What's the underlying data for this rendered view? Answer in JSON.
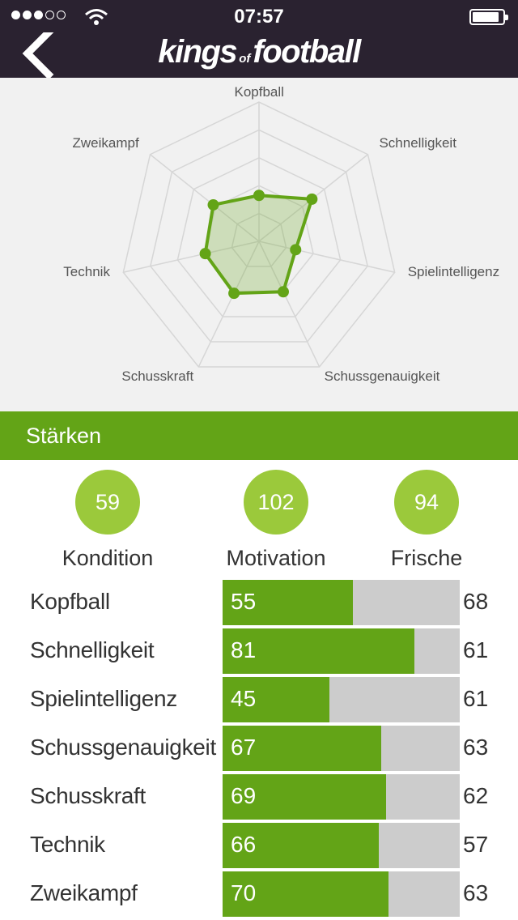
{
  "status": {
    "time": "07:57"
  },
  "nav": {
    "logo_left": "kings",
    "logo_mid": "of",
    "logo_right": "football"
  },
  "chart_data": {
    "type": "radar",
    "axes": [
      "Kopfball",
      "Schnelligkeit",
      "Spielintelligenz",
      "Schussgenauigkeit",
      "Schusskraft",
      "Technik",
      "Zweikampf"
    ],
    "values": [
      55,
      81,
      45,
      67,
      69,
      66,
      70
    ],
    "range": [
      0,
      100
    ],
    "rings": 5,
    "color": "#63a417"
  },
  "section": {
    "title": "Stärken"
  },
  "stats": [
    {
      "value": "59",
      "label": "Kondition"
    },
    {
      "value": "102",
      "label": "Motivation"
    },
    {
      "value": "94",
      "label": "Frische"
    }
  ],
  "skills": [
    {
      "name": "Kopfball",
      "value": 55,
      "right": "68"
    },
    {
      "name": "Schnelligkeit",
      "value": 81,
      "right": "61"
    },
    {
      "name": "Spielintelligenz",
      "value": 45,
      "right": "61"
    },
    {
      "name": "Schussgenauigkeit",
      "value": 67,
      "right": "63"
    },
    {
      "name": "Schusskraft",
      "value": 69,
      "right": "62"
    },
    {
      "name": "Technik",
      "value": 66,
      "right": "57"
    },
    {
      "name": "Zweikampf",
      "value": 70,
      "right": "63"
    }
  ],
  "colors": {
    "accent": "#63a417",
    "circle": "#9bc93b",
    "header": "#2a2230"
  }
}
